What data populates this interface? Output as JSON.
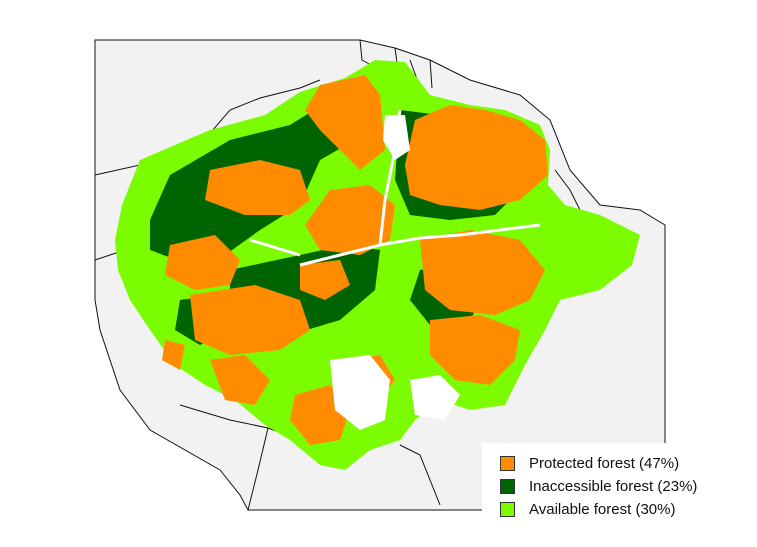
{
  "colors": {
    "land": "#f2f2f2",
    "border": "#111111",
    "protected": "#ff8c00",
    "inaccessible": "#006400",
    "available": "#7cfc00"
  },
  "legend": {
    "items": [
      {
        "label": "Protected forest (47%)",
        "color": "#ff8c00"
      },
      {
        "label": "Inaccessible forest (23%)",
        "color": "#006400"
      },
      {
        "label": "Available forest (30%)",
        "color": "#7cfc00"
      }
    ]
  }
}
